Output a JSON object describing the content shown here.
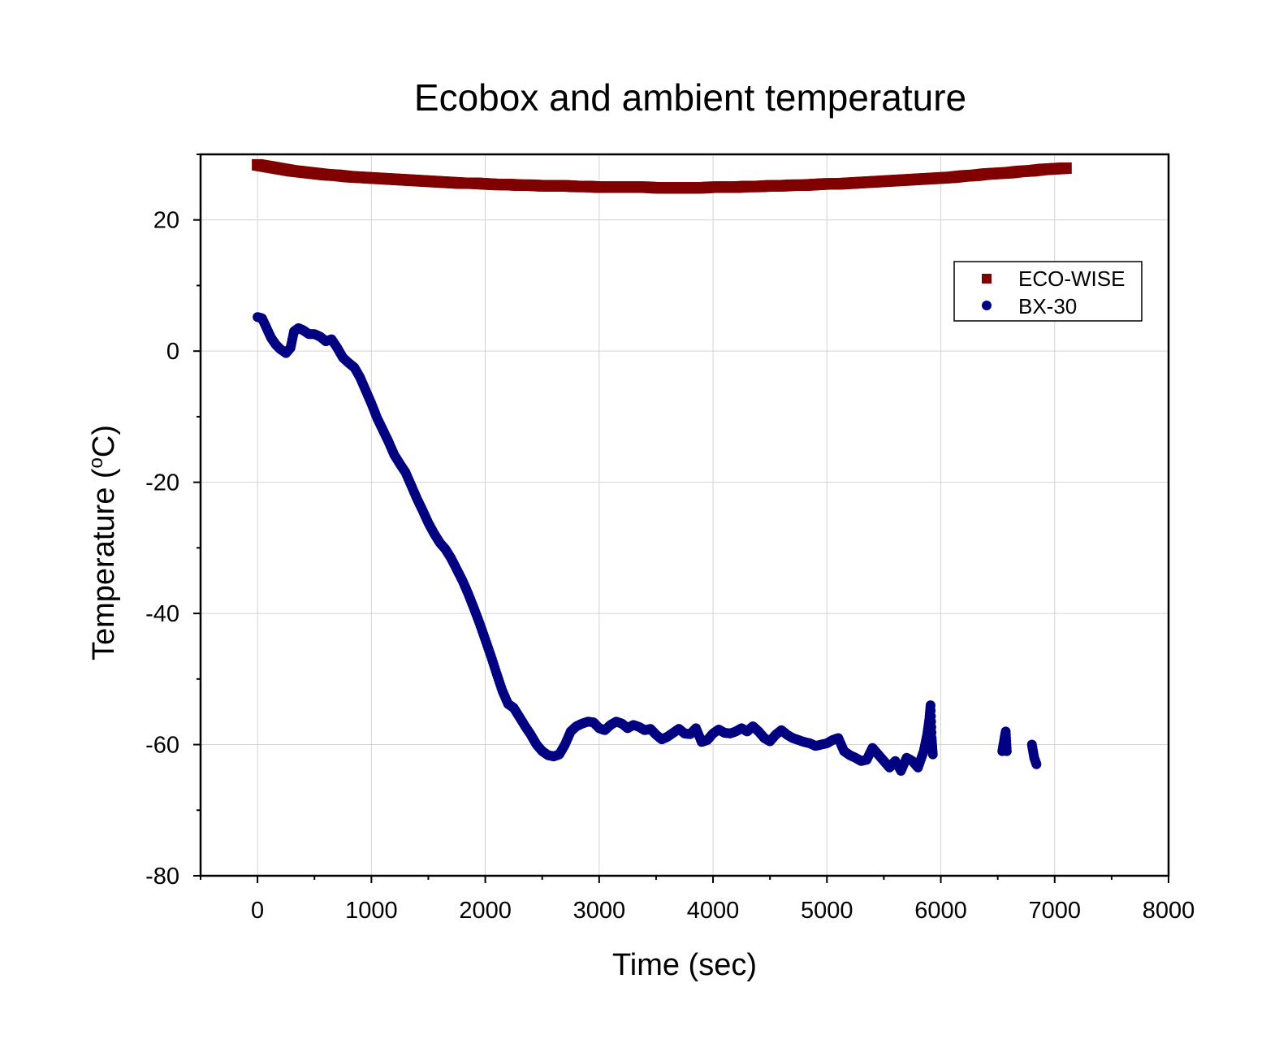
{
  "chart_data": {
    "type": "scatter",
    "title": "Ecobox and ambient temperature",
    "xlabel": "Time (sec)",
    "ylabel_main": "Temperature (",
    "ylabel_sup": "o",
    "ylabel_tail": "C)",
    "xlim": [
      -500,
      8000
    ],
    "ylim": [
      -80,
      30
    ],
    "xticks": [
      0,
      1000,
      2000,
      3000,
      4000,
      5000,
      6000,
      7000,
      8000
    ],
    "yticks": [
      -80,
      -60,
      -40,
      -20,
      0,
      20
    ],
    "x_tick_labels": [
      "0",
      "1000",
      "2000",
      "3000",
      "4000",
      "5000",
      "6000",
      "7000",
      "8000"
    ],
    "y_tick_labels": [
      "-80",
      "-60",
      "-40",
      "-20",
      "0",
      "20"
    ],
    "grid": true,
    "legend_position": "top-right",
    "series": [
      {
        "name": "ECO-WISE",
        "marker": "square",
        "color": "#800000",
        "points": [
          [
            0,
            28.4
          ],
          [
            100,
            28.1
          ],
          [
            200,
            27.8
          ],
          [
            300,
            27.5
          ],
          [
            400,
            27.3
          ],
          [
            500,
            27.1
          ],
          [
            600,
            26.9
          ],
          [
            700,
            26.8
          ],
          [
            800,
            26.6
          ],
          [
            900,
            26.5
          ],
          [
            1000,
            26.4
          ],
          [
            1100,
            26.3
          ],
          [
            1200,
            26.2
          ],
          [
            1300,
            26.1
          ],
          [
            1400,
            26.0
          ],
          [
            1500,
            25.9
          ],
          [
            1600,
            25.8
          ],
          [
            1700,
            25.7
          ],
          [
            1800,
            25.6
          ],
          [
            1900,
            25.6
          ],
          [
            2000,
            25.5
          ],
          [
            2100,
            25.4
          ],
          [
            2200,
            25.4
          ],
          [
            2300,
            25.3
          ],
          [
            2400,
            25.3
          ],
          [
            2500,
            25.2
          ],
          [
            2600,
            25.2
          ],
          [
            2700,
            25.2
          ],
          [
            2800,
            25.1
          ],
          [
            2900,
            25.1
          ],
          [
            3000,
            25.0
          ],
          [
            3100,
            25.0
          ],
          [
            3200,
            25.0
          ],
          [
            3300,
            25.0
          ],
          [
            3400,
            25.0
          ],
          [
            3500,
            24.9
          ],
          [
            3600,
            24.9
          ],
          [
            3700,
            24.9
          ],
          [
            3800,
            24.9
          ],
          [
            3900,
            24.9
          ],
          [
            4000,
            25.0
          ],
          [
            4100,
            25.0
          ],
          [
            4200,
            25.0
          ],
          [
            4300,
            25.1
          ],
          [
            4400,
            25.1
          ],
          [
            4500,
            25.2
          ],
          [
            4600,
            25.2
          ],
          [
            4700,
            25.3
          ],
          [
            4800,
            25.3
          ],
          [
            4900,
            25.4
          ],
          [
            5000,
            25.5
          ],
          [
            5100,
            25.5
          ],
          [
            5200,
            25.6
          ],
          [
            5300,
            25.7
          ],
          [
            5400,
            25.8
          ],
          [
            5500,
            25.9
          ],
          [
            5600,
            26.0
          ],
          [
            5700,
            26.1
          ],
          [
            5800,
            26.2
          ],
          [
            5900,
            26.3
          ],
          [
            6000,
            26.4
          ],
          [
            6100,
            26.5
          ],
          [
            6200,
            26.7
          ],
          [
            6300,
            26.8
          ],
          [
            6400,
            27.0
          ],
          [
            6500,
            27.1
          ],
          [
            6600,
            27.2
          ],
          [
            6700,
            27.4
          ],
          [
            6800,
            27.5
          ],
          [
            6900,
            27.7
          ],
          [
            7000,
            27.8
          ],
          [
            7100,
            27.9
          ]
        ]
      },
      {
        "name": "BX-30",
        "marker": "circle",
        "color": "#000080",
        "points": [
          [
            0,
            5.2
          ],
          [
            40,
            5.0
          ],
          [
            80,
            3.5
          ],
          [
            120,
            2.0
          ],
          [
            160,
            1.0
          ],
          [
            200,
            0.3
          ],
          [
            250,
            -0.3
          ],
          [
            290,
            0.5
          ],
          [
            320,
            3.0
          ],
          [
            360,
            3.5
          ],
          [
            400,
            3.2
          ],
          [
            450,
            2.6
          ],
          [
            500,
            2.6
          ],
          [
            550,
            2.2
          ],
          [
            600,
            1.5
          ],
          [
            650,
            1.8
          ],
          [
            700,
            0.5
          ],
          [
            750,
            -1.0
          ],
          [
            800,
            -1.8
          ],
          [
            850,
            -2.5
          ],
          [
            900,
            -4.0
          ],
          [
            950,
            -6.0
          ],
          [
            1000,
            -8.0
          ],
          [
            1050,
            -10.2
          ],
          [
            1100,
            -12.0
          ],
          [
            1150,
            -13.8
          ],
          [
            1200,
            -15.8
          ],
          [
            1250,
            -17.2
          ],
          [
            1300,
            -18.5
          ],
          [
            1350,
            -20.5
          ],
          [
            1400,
            -22.5
          ],
          [
            1450,
            -24.3
          ],
          [
            1500,
            -26.2
          ],
          [
            1550,
            -27.8
          ],
          [
            1600,
            -29.2
          ],
          [
            1650,
            -30.2
          ],
          [
            1700,
            -31.6
          ],
          [
            1750,
            -33.3
          ],
          [
            1800,
            -35.0
          ],
          [
            1850,
            -37.0
          ],
          [
            1900,
            -39.2
          ],
          [
            1950,
            -41.5
          ],
          [
            2000,
            -44.0
          ],
          [
            2050,
            -46.5
          ],
          [
            2100,
            -49.2
          ],
          [
            2150,
            -51.8
          ],
          [
            2200,
            -53.8
          ],
          [
            2250,
            -54.4
          ],
          [
            2300,
            -55.8
          ],
          [
            2350,
            -57.2
          ],
          [
            2400,
            -58.5
          ],
          [
            2450,
            -60.0
          ],
          [
            2500,
            -61.0
          ],
          [
            2550,
            -61.6
          ],
          [
            2600,
            -61.8
          ],
          [
            2650,
            -61.5
          ],
          [
            2700,
            -60.0
          ],
          [
            2750,
            -58.0
          ],
          [
            2800,
            -57.2
          ],
          [
            2850,
            -56.8
          ],
          [
            2900,
            -56.5
          ],
          [
            2950,
            -56.6
          ],
          [
            3000,
            -57.5
          ],
          [
            3050,
            -57.8
          ],
          [
            3100,
            -57.0
          ],
          [
            3150,
            -56.5
          ],
          [
            3200,
            -56.8
          ],
          [
            3250,
            -57.5
          ],
          [
            3300,
            -57.0
          ],
          [
            3350,
            -57.3
          ],
          [
            3400,
            -57.8
          ],
          [
            3450,
            -57.6
          ],
          [
            3500,
            -58.5
          ],
          [
            3550,
            -59.2
          ],
          [
            3600,
            -58.8
          ],
          [
            3650,
            -58.2
          ],
          [
            3700,
            -57.6
          ],
          [
            3750,
            -58.3
          ],
          [
            3800,
            -58.4
          ],
          [
            3850,
            -57.5
          ],
          [
            3900,
            -59.6
          ],
          [
            3950,
            -59.3
          ],
          [
            4000,
            -58.3
          ],
          [
            4050,
            -57.7
          ],
          [
            4100,
            -58.2
          ],
          [
            4150,
            -58.3
          ],
          [
            4200,
            -58.0
          ],
          [
            4250,
            -57.5
          ],
          [
            4300,
            -58.0
          ],
          [
            4350,
            -57.2
          ],
          [
            4400,
            -58.0
          ],
          [
            4450,
            -59.0
          ],
          [
            4500,
            -59.5
          ],
          [
            4550,
            -58.5
          ],
          [
            4600,
            -57.8
          ],
          [
            4650,
            -58.5
          ],
          [
            4700,
            -59.0
          ],
          [
            4750,
            -59.3
          ],
          [
            4800,
            -59.6
          ],
          [
            4850,
            -59.8
          ],
          [
            4900,
            -60.2
          ],
          [
            4950,
            -60.0
          ],
          [
            5000,
            -59.8
          ],
          [
            5050,
            -59.3
          ],
          [
            5100,
            -59.0
          ],
          [
            5150,
            -61.0
          ],
          [
            5200,
            -61.6
          ],
          [
            5250,
            -62.0
          ],
          [
            5300,
            -62.5
          ],
          [
            5350,
            -62.3
          ],
          [
            5400,
            -60.5
          ],
          [
            5450,
            -61.5
          ],
          [
            5500,
            -62.5
          ],
          [
            5550,
            -63.5
          ],
          [
            5600,
            -62.5
          ],
          [
            5650,
            -64.0
          ],
          [
            5700,
            -62.0
          ],
          [
            5750,
            -62.5
          ],
          [
            5800,
            -63.5
          ],
          [
            5850,
            -61.0
          ],
          [
            5880,
            -58.5
          ],
          [
            5900,
            -56.0
          ],
          [
            5910,
            -54.0
          ],
          [
            5920,
            -59.0
          ],
          [
            5930,
            -61.5
          ],
          [
            6540,
            -61.0
          ],
          [
            6560,
            -59.0
          ],
          [
            6570,
            -58.0
          ],
          [
            6580,
            -61.0
          ],
          [
            6800,
            -60.0
          ],
          [
            6820,
            -62.0
          ],
          [
            6840,
            -63.0
          ]
        ]
      }
    ]
  }
}
